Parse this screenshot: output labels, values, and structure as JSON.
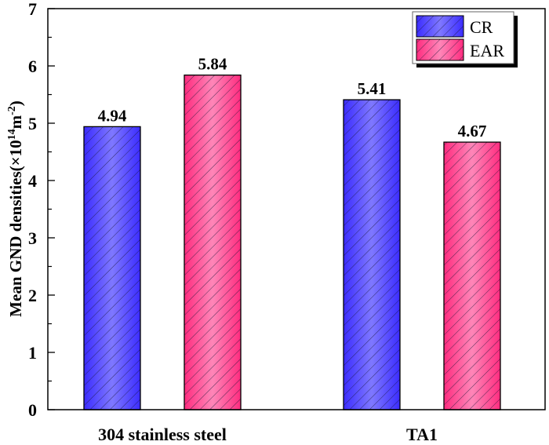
{
  "chart_data": {
    "type": "bar",
    "title": "",
    "xlabel": "",
    "ylabel": "Mean GND densities(×10¹⁴m⁻²)",
    "ylabel_parts": {
      "main": "Mean GND densities(×10",
      "exp1": "14",
      "mid": "m",
      "exp2": "-2",
      "end": ")"
    },
    "categories": [
      "304 stainless steel",
      "TA1"
    ],
    "series": [
      {
        "name": "CR",
        "values": [
          4.94,
          5.41
        ],
        "color": "#3b2cff",
        "color_light": "#7f78ff"
      },
      {
        "name": "EAR",
        "values": [
          5.84,
          4.67
        ],
        "color": "#ff2c7f",
        "color_light": "#ff86b8"
      }
    ],
    "data_labels": [
      [
        "4.94",
        "5.41"
      ],
      [
        "5.84",
        "4.67"
      ]
    ],
    "ylim": [
      0,
      7
    ],
    "yticks": [
      0,
      1,
      2,
      3,
      4,
      5,
      6,
      7
    ],
    "yticks_minor": [
      0.5,
      1.5,
      2.5,
      3.5,
      4.5,
      5.5,
      6.5
    ],
    "grid": false,
    "hatch": "diagonal",
    "legend_position": "top-right"
  }
}
